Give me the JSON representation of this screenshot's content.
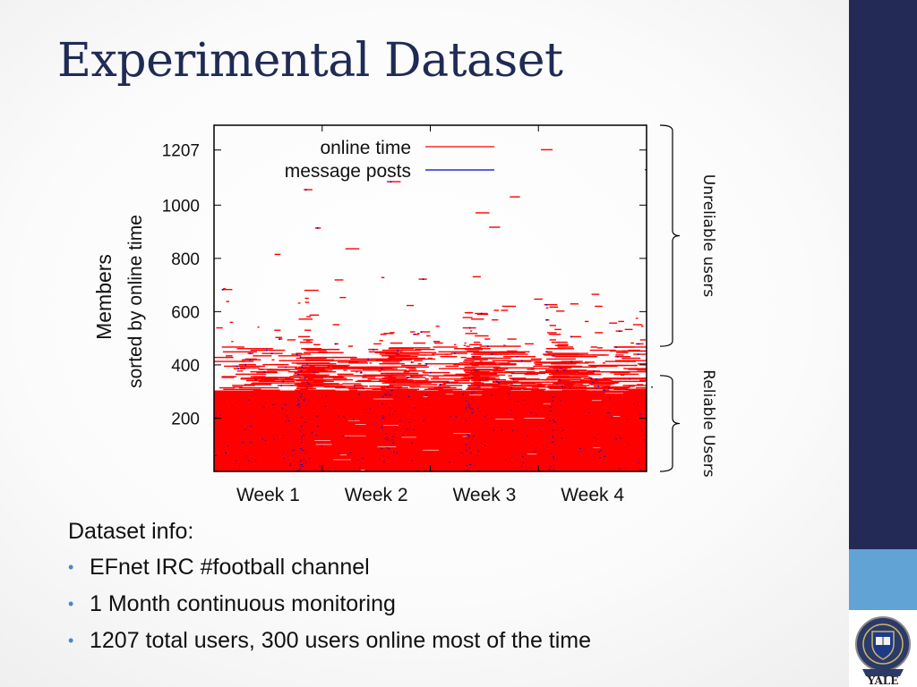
{
  "slide": {
    "title": "Experimental Dataset"
  },
  "info": {
    "heading": "Dataset info:",
    "bullets": [
      "EFnet IRC #football channel",
      "1 Month continuous monitoring",
      "1207 total users, 300 users online most of the time"
    ]
  },
  "logo": {
    "text": "YALE"
  },
  "colors": {
    "title": "#1f2a55",
    "sidebar_dark": "#232a55",
    "sidebar_light": "#62a3d6",
    "bullet": "#4a87c4",
    "online_time": "#ff0000",
    "message_posts": "#0000cc"
  },
  "chart_data": {
    "type": "heatmap",
    "ylabel_line1": "Members",
    "ylabel_line2": "sorted by online time",
    "yticks": [
      200,
      400,
      600,
      800,
      1000,
      1207
    ],
    "ylim": [
      0,
      1300
    ],
    "xticks": [
      "Week 1",
      "Week 2",
      "Week 3",
      "Week 4"
    ],
    "legend": [
      {
        "name": "online time",
        "color": "#ff0000"
      },
      {
        "name": "message posts",
        "color": "#0000cc"
      }
    ],
    "legend_position": "top",
    "groups": [
      {
        "label": "Unreliable users",
        "from": 470,
        "to": 1300
      },
      {
        "label": "Reliable Users",
        "from": 0,
        "to": 360
      }
    ],
    "reliable_threshold": 300,
    "total_users": 1207
  }
}
